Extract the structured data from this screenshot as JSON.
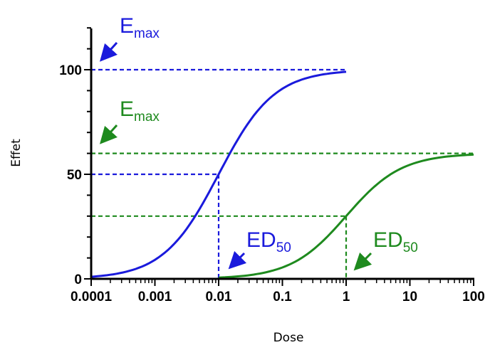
{
  "chart_data": {
    "type": "line",
    "xlabel": "Dose",
    "ylabel": "Effet",
    "x_scale": "log",
    "xlim": [
      0.0001,
      100
    ],
    "ylim": [
      0,
      120
    ],
    "x_ticks": [
      "0.0001",
      "0.001",
      "0.01",
      "0.1",
      "1",
      "10",
      "100"
    ],
    "y_ticks": [
      "0",
      "50",
      "100"
    ],
    "grid": false,
    "colors": {
      "blue": "#1a1adc",
      "green": "#1e8a1e"
    },
    "series": [
      {
        "color": "blue",
        "emax": 100,
        "ed50": 0.01,
        "x": [
          0.0001,
          0.0003,
          0.001,
          0.003,
          0.01,
          0.03,
          0.1,
          0.3,
          1
        ],
        "y": [
          1,
          3,
          9,
          23,
          50,
          77,
          91,
          97,
          99
        ]
      },
      {
        "color": "green",
        "emax": 60,
        "ed50": 1,
        "x": [
          0.01,
          0.03,
          0.1,
          0.3,
          1,
          3,
          10,
          30,
          100
        ],
        "y": [
          0.6,
          1.8,
          5.5,
          14,
          30,
          46,
          55,
          58,
          59.5
        ]
      }
    ],
    "annotations": [
      {
        "label": "E",
        "sub": "max",
        "color": "blue"
      },
      {
        "label": "E",
        "sub": "max",
        "color": "green"
      },
      {
        "label": "ED",
        "sub": "50",
        "color": "blue"
      },
      {
        "label": "ED",
        "sub": "50",
        "color": "green"
      }
    ]
  }
}
